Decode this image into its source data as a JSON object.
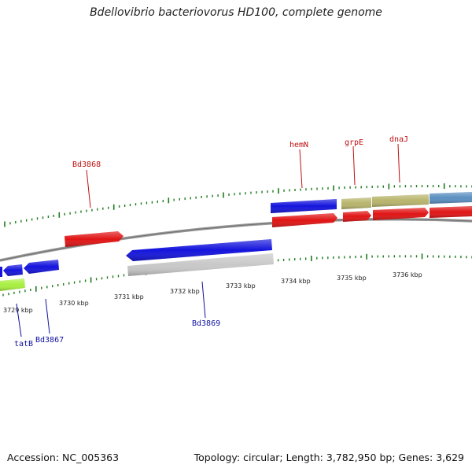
{
  "title": "Bdellovibrio bacteriovorus HD100, complete genome",
  "footer": {
    "accession": "Accession: NC_005363",
    "summary": "Topology: circular; Length: 3,782,950 bp; Genes: 3,629"
  },
  "colors": {
    "backbone": "#8c8c8c",
    "tick": "#1f7a1f",
    "gene_label_forward": "#c01010",
    "gene_label_reverse": "#1010a0",
    "blue": "#1414dc",
    "red": "#e01414",
    "gray": "#c8c8c8",
    "olive": "#b8b46c",
    "steelblue": "#5a8ec0",
    "lime": "#a8f040"
  },
  "scale_labels": [
    "3729 kbp",
    "3730 kbp",
    "3731 kbp",
    "3732 kbp",
    "3733 kbp",
    "3734 kbp",
    "3735 kbp",
    "3736 kbp"
  ],
  "gene_labels": [
    {
      "name": "Bd3868",
      "strand": "forward"
    },
    {
      "name": "hemN",
      "strand": "forward"
    },
    {
      "name": "grpE",
      "strand": "forward"
    },
    {
      "name": "dnaJ",
      "strand": "forward"
    },
    {
      "name": "Bd3869",
      "strand": "reverse"
    },
    {
      "name": "tatB",
      "strand": "reverse"
    },
    {
      "name": "Bd3867",
      "strand": "reverse"
    }
  ]
}
